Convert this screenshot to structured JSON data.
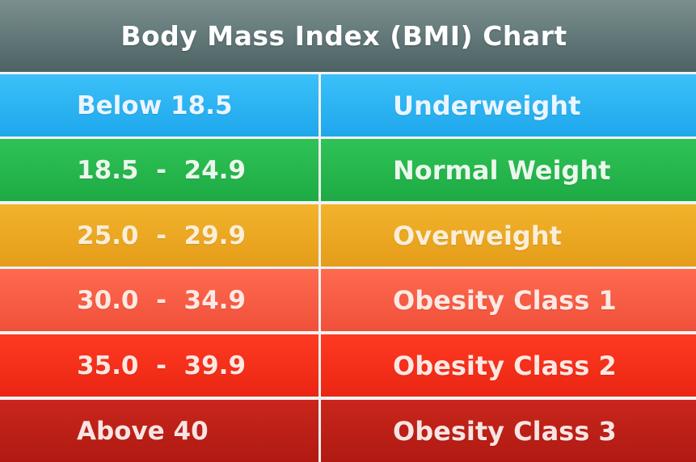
{
  "title": "Body Mass Index (BMI) Chart",
  "rows": [
    {
      "range": "Below 18.5",
      "category": "Underweight",
      "color": "#2bb3f2"
    },
    {
      "range": "18.5  -  24.9",
      "category": "Normal Weight",
      "color": "#25b64c"
    },
    {
      "range": "25.0  -  29.9",
      "category": "Overweight",
      "color": "#eaa822"
    },
    {
      "range": "30.0  -  34.9",
      "category": "Obesity Class 1",
      "color": "#f75c44"
    },
    {
      "range": "35.0  -  39.9",
      "category": "Obesity Class 2",
      "color": "#f3301a"
    },
    {
      "range": "Above 40",
      "category": "Obesity Class 3",
      "color": "#bc2017"
    }
  ]
}
